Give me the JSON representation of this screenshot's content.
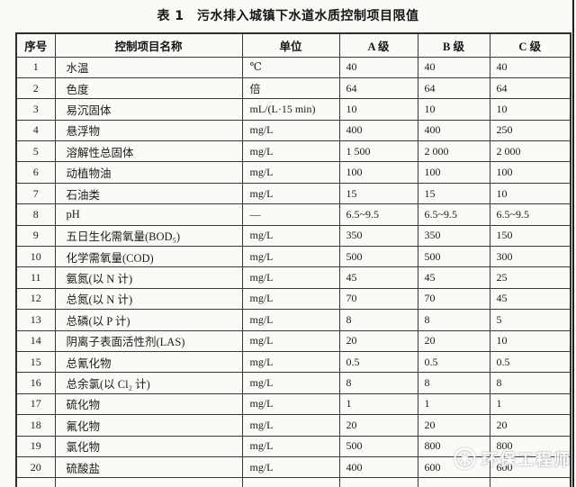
{
  "title": "表 1　污水排入城镇下水道水质控制项目限值",
  "table": {
    "headers": [
      "序号",
      "控制项目名称",
      "单位",
      "A 级",
      "B 级",
      "C 级"
    ],
    "rows": [
      {
        "no": "1",
        "name": "水温",
        "unit": "℃",
        "a": "40",
        "b": "40",
        "c": "40"
      },
      {
        "no": "2",
        "name": "色度",
        "unit": "倍",
        "a": "64",
        "b": "64",
        "c": "64"
      },
      {
        "no": "3",
        "name": "易沉固体",
        "unit": "mL/(L·15 min)",
        "a": "10",
        "b": "10",
        "c": "10"
      },
      {
        "no": "4",
        "name": "悬浮物",
        "unit": "mg/L",
        "a": "400",
        "b": "400",
        "c": "250"
      },
      {
        "no": "5",
        "name": "溶解性总固体",
        "unit": "mg/L",
        "a": "1 500",
        "b": "2 000",
        "c": "2 000"
      },
      {
        "no": "6",
        "name": "动植物油",
        "unit": "mg/L",
        "a": "100",
        "b": "100",
        "c": "100"
      },
      {
        "no": "7",
        "name": "石油类",
        "unit": "mg/L",
        "a": "15",
        "b": "15",
        "c": "10"
      },
      {
        "no": "8",
        "name": "pH",
        "unit": "—",
        "a": "6.5~9.5",
        "b": "6.5~9.5",
        "c": "6.5~9.5"
      },
      {
        "no": "9",
        "name": "五日生化需氧量(BOD₅)",
        "unit": "mg/L",
        "a": "350",
        "b": "350",
        "c": "150"
      },
      {
        "no": "10",
        "name": "化学需氧量(COD)",
        "unit": "mg/L",
        "a": "500",
        "b": "500",
        "c": "300"
      },
      {
        "no": "11",
        "name": "氨氮(以 N 计)",
        "unit": "mg/L",
        "a": "45",
        "b": "45",
        "c": "25"
      },
      {
        "no": "12",
        "name": "总氮(以 N 计)",
        "unit": "mg/L",
        "a": "70",
        "b": "70",
        "c": "45"
      },
      {
        "no": "13",
        "name": "总磷(以 P 计)",
        "unit": "mg/L",
        "a": "8",
        "b": "8",
        "c": "5"
      },
      {
        "no": "14",
        "name": "阴离子表面活性剂(LAS)",
        "unit": "mg/L",
        "a": "20",
        "b": "20",
        "c": "10"
      },
      {
        "no": "15",
        "name": "总氰化物",
        "unit": "mg/L",
        "a": "0.5",
        "b": "0.5",
        "c": "0.5"
      },
      {
        "no": "16",
        "name": "总余氯(以 Cl₂ 计)",
        "unit": "mg/L",
        "a": "8",
        "b": "8",
        "c": "8"
      },
      {
        "no": "17",
        "name": "硫化物",
        "unit": "mg/L",
        "a": "1",
        "b": "1",
        "c": "1"
      },
      {
        "no": "18",
        "name": "氟化物",
        "unit": "mg/L",
        "a": "20",
        "b": "20",
        "c": "20"
      },
      {
        "no": "19",
        "name": "氯化物",
        "unit": "mg/L",
        "a": "500",
        "b": "800",
        "c": "800"
      },
      {
        "no": "20",
        "name": "硫酸盐",
        "unit": "mg/L",
        "a": "400",
        "b": "600",
        "c": "600"
      }
    ]
  },
  "watermark": {
    "icon": "asterisk-badge-icon",
    "text": "环保工程师"
  },
  "colors": {
    "background": "#fbfaf7",
    "border": "#3a3a3a",
    "text": "#1b1b1b",
    "watermark": "#ffffff"
  }
}
